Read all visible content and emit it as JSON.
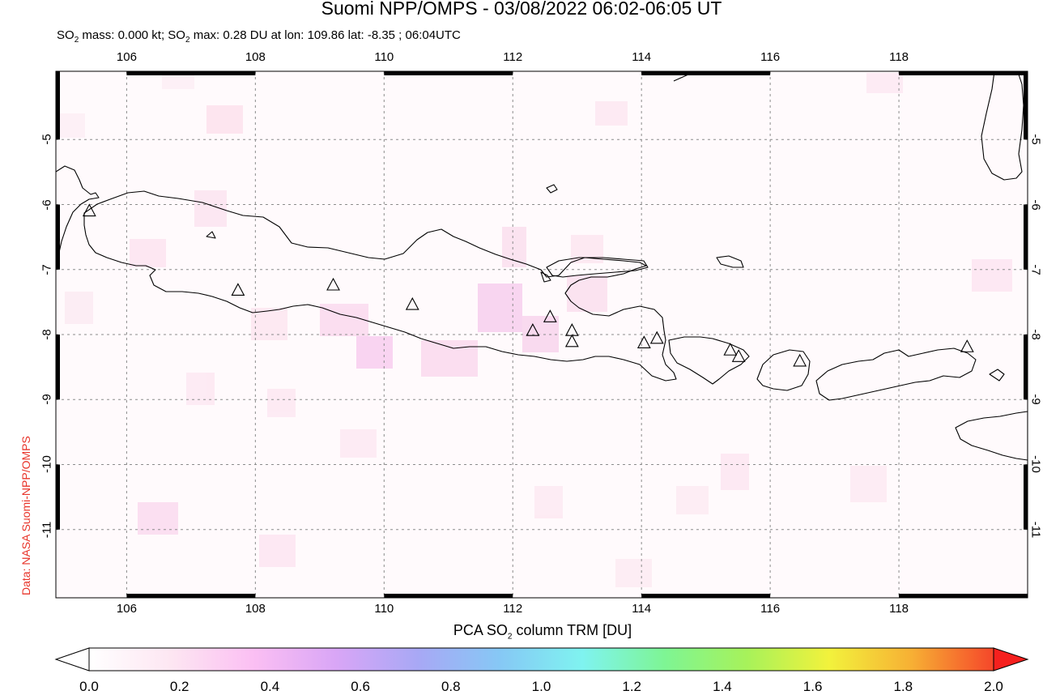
{
  "title": "Suomi NPP/OMPS - 03/08/2022 06:02-06:05 UT",
  "subtitle": {
    "part1": "SO",
    "sub1": "2",
    "part2": " mass: 0.000 kt; SO",
    "sub2": "2",
    "part3": " max: 0.28 DU at lon: 109.86 lat: -8.35 ; 06:04UTC"
  },
  "credit": "Data: NASA Suomi-NPP/OMPS",
  "map": {
    "lon_range": [
      104.9,
      120.0
    ],
    "lat_range": [
      -12.05,
      -3.95
    ],
    "lon_ticks": [
      "106",
      "108",
      "110",
      "112",
      "114",
      "116",
      "118"
    ],
    "lat_ticks": [
      "-5",
      "-6",
      "-7",
      "-8",
      "-9",
      "-10",
      "-11"
    ],
    "grid": "dashed",
    "volcano_marker": "triangle-icon",
    "volcanoes": [
      {
        "lon": 105.42,
        "lat": -6.1
      },
      {
        "lon": 107.73,
        "lat": -7.32
      },
      {
        "lon": 109.21,
        "lat": -7.24
      },
      {
        "lon": 110.44,
        "lat": -7.54
      },
      {
        "lon": 112.31,
        "lat": -7.94
      },
      {
        "lon": 112.58,
        "lat": -7.73
      },
      {
        "lon": 112.92,
        "lat": -7.94
      },
      {
        "lon": 112.92,
        "lat": -8.11
      },
      {
        "lon": 114.04,
        "lat": -8.13
      },
      {
        "lon": 114.24,
        "lat": -8.06
      },
      {
        "lon": 115.38,
        "lat": -8.24
      },
      {
        "lon": 115.51,
        "lat": -8.34
      },
      {
        "lon": 116.46,
        "lat": -8.41
      },
      {
        "lon": 119.06,
        "lat": -8.19
      }
    ]
  },
  "colorbar": {
    "title_pre": "PCA SO",
    "title_sub": "2",
    "title_post": " column TRM [DU]",
    "range": [
      0.0,
      2.0
    ],
    "ticks": [
      "0.0",
      "0.2",
      "0.4",
      "0.6",
      "0.8",
      "1.0",
      "1.2",
      "1.4",
      "1.6",
      "1.8",
      "2.0"
    ],
    "colors": [
      "#ffffff",
      "#fde6f2",
      "#fbbff3",
      "#d9a6f6",
      "#a8a8f5",
      "#86c8f5",
      "#7ff3f0",
      "#7ef594",
      "#a7f25a",
      "#f2f23c",
      "#f7b034",
      "#f5462a"
    ],
    "over_color": "#f5201e",
    "under_color": "#ffffff"
  }
}
